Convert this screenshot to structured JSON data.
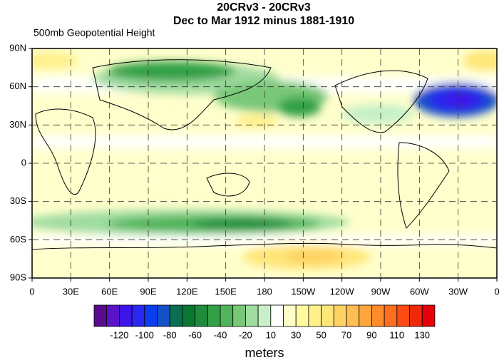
{
  "title": {
    "line1": "20CRv3 - 20CRv3",
    "line2": "Dec to Mar 1912 minus 1881-1910"
  },
  "subtitle": "500mb Geopotential Height",
  "map": {
    "lat_ticks": [
      "90N",
      "60N",
      "30N",
      "0",
      "30S",
      "60S",
      "90S"
    ],
    "lon_ticks": [
      "0",
      "30E",
      "60E",
      "90E",
      "120E",
      "150E",
      "180",
      "150W",
      "120W",
      "90W",
      "60W",
      "30W",
      "0"
    ]
  },
  "colorbar": {
    "colors": [
      "#5a0a8c",
      "#5a14c8",
      "#3c14e6",
      "#2828f0",
      "#0a3cf0",
      "#1450c8",
      "#0a6e50",
      "#0a7832",
      "#1e8c3c",
      "#32a046",
      "#50b45a",
      "#78c878",
      "#a0dca0",
      "#c8f0c8",
      "#ffffff",
      "#ffffc8",
      "#fffaa0",
      "#fff08c",
      "#ffe678",
      "#ffd264",
      "#ffbe50",
      "#ffa53c",
      "#ff8c28",
      "#ff6e1e",
      "#ff4a14",
      "#f0280a",
      "#e6000a"
    ],
    "labels": [
      "-120",
      "-100",
      "-80",
      "-60",
      "-40",
      "-20",
      "10",
      "30",
      "50",
      "70",
      "90",
      "110",
      "130"
    ],
    "units": "meters"
  }
}
